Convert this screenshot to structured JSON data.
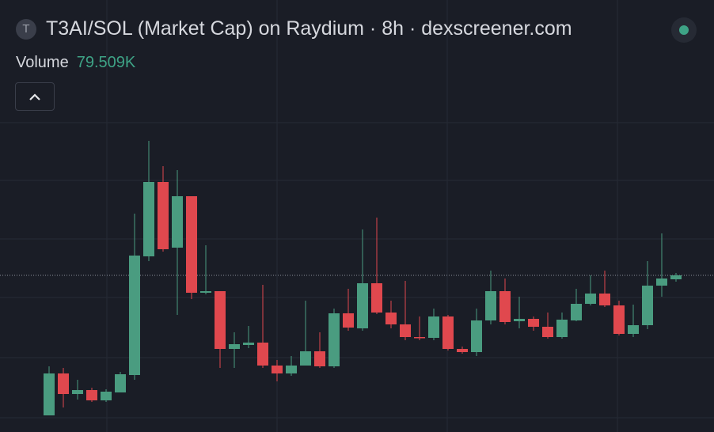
{
  "chart_data": {
    "type": "candlestick",
    "title": "T3AI/SOL (Market Cap) on Raydium · 8h · dexscreener.com",
    "title_icon": "T",
    "volume_label": "Volume",
    "volume_value": "79.509K",
    "up_color": "#4a9c80",
    "down_color": "#e0484e",
    "ylim": [
      0,
      396
    ],
    "open": [
      21,
      74,
      48,
      53,
      40,
      50,
      72,
      222,
      316,
      233,
      298,
      176,
      178,
      105,
      110,
      113,
      84,
      74,
      84,
      102,
      83,
      150,
      131,
      188,
      151,
      136,
      120,
      119,
      146,
      105,
      101,
      141,
      178,
      140,
      143,
      133,
      120,
      141,
      162,
      175,
      160,
      124,
      135,
      185,
      193
    ],
    "high": [
      83,
      81,
      66,
      56,
      54,
      76,
      276,
      368,
      336,
      331,
      298,
      236,
      178,
      126,
      134,
      186,
      91,
      96,
      166,
      126,
      156,
      181,
      256,
      271,
      166,
      191,
      146,
      156,
      148,
      108,
      156,
      204,
      194,
      171,
      146,
      151,
      151,
      181,
      198,
      204,
      166,
      161,
      216,
      251,
      201
    ],
    "low": [
      21,
      31,
      41,
      38,
      38,
      50,
      66,
      216,
      228,
      148,
      168,
      174,
      81,
      81,
      106,
      81,
      64,
      71,
      84,
      81,
      81,
      128,
      128,
      149,
      131,
      116,
      116,
      116,
      103,
      99,
      96,
      136,
      136,
      131,
      128,
      118,
      118,
      140,
      160,
      158,
      122,
      120,
      130,
      171,
      190
    ],
    "close": [
      74,
      48,
      53,
      40,
      51,
      73,
      223,
      316,
      231,
      298,
      176,
      178,
      105,
      111,
      113,
      84,
      74,
      84,
      102,
      83,
      150,
      132,
      188,
      151,
      136,
      120,
      119,
      146,
      105,
      101,
      141,
      178,
      139,
      143,
      133,
      120,
      142,
      162,
      175,
      160,
      124,
      135,
      185,
      194,
      198
    ]
  }
}
